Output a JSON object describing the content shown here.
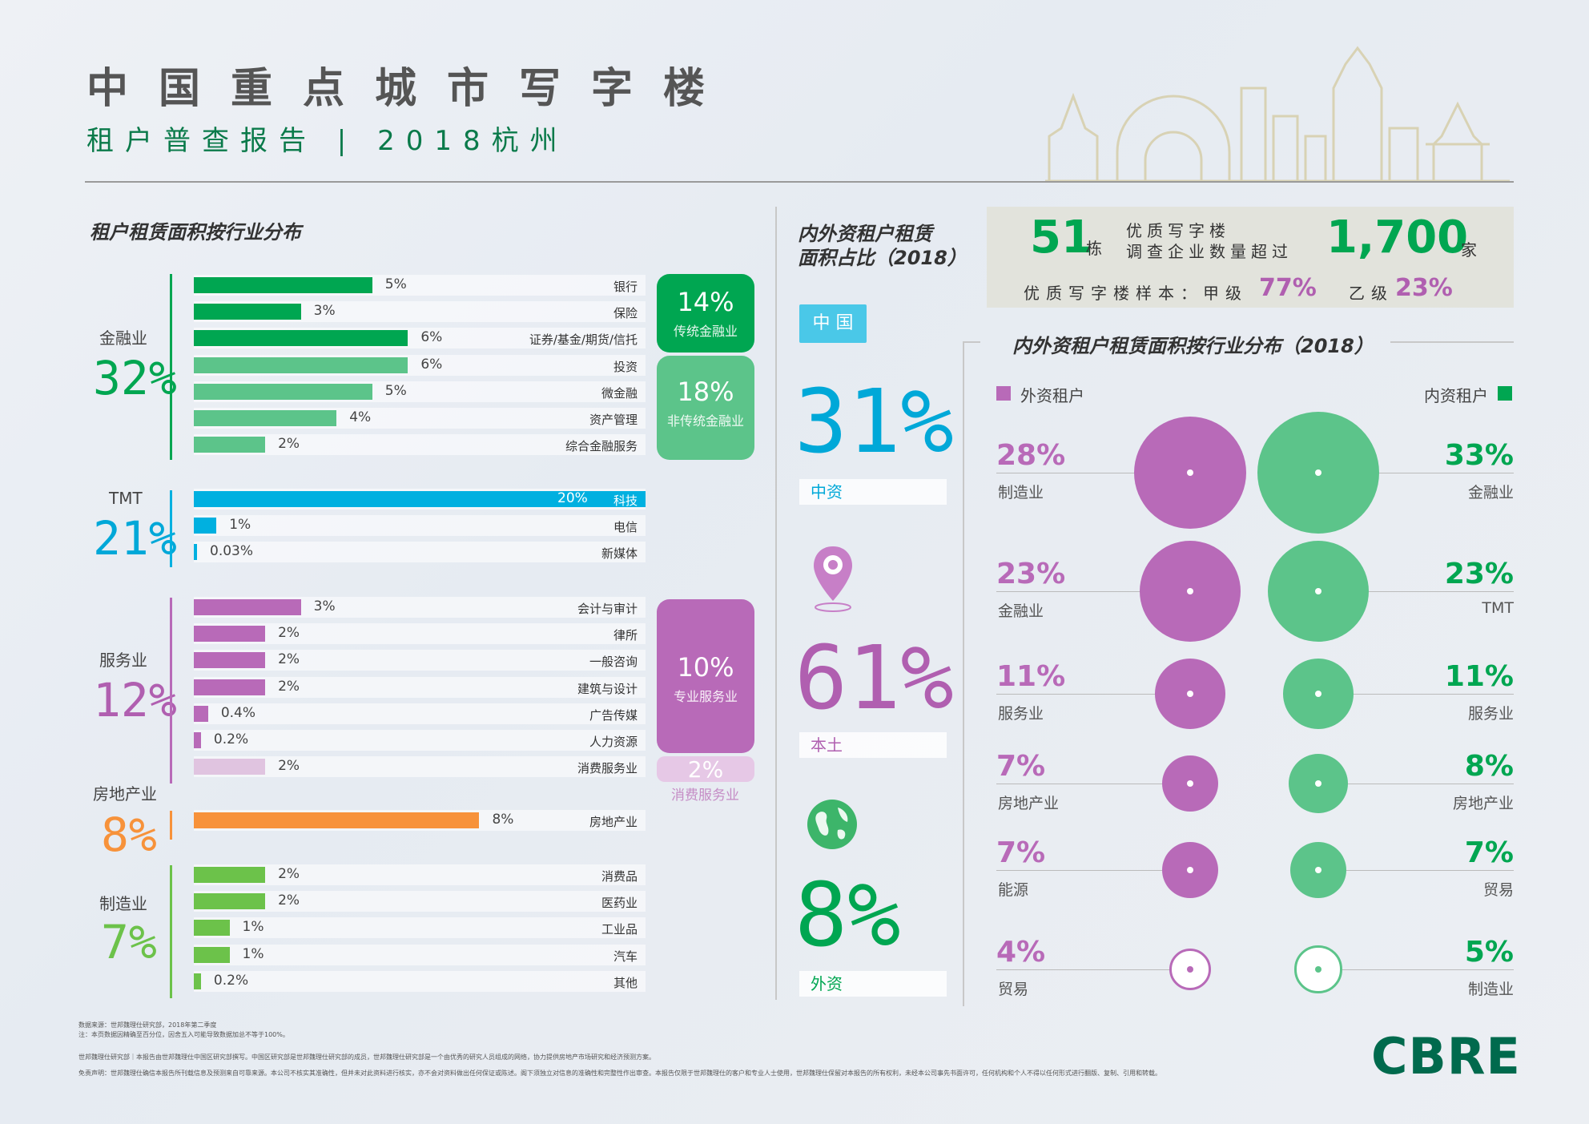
{
  "header": {
    "title": "中国重点城市写字楼",
    "subtitle": "租户普查报告 | 2018杭州"
  },
  "left": {
    "section_title": "租户租赁面积按行业分布",
    "categories": [
      {
        "name": "金融业",
        "pct": "32%"
      },
      {
        "name": "TMT",
        "pct": "21%"
      },
      {
        "name": "服务业",
        "pct": "12%"
      },
      {
        "name": "房地产业",
        "pct": "8%"
      },
      {
        "name": "制造业",
        "pct": "7%"
      }
    ],
    "pills": [
      {
        "pct": "14%",
        "label": "传统金融业"
      },
      {
        "pct": "18%",
        "label": "非传统金融业"
      },
      {
        "pct": "10%",
        "label": "专业服务业"
      },
      {
        "pct": "2%",
        "label": "消费服务业"
      }
    ]
  },
  "middle": {
    "section_title_1": "内外资租户租赁",
    "section_title_2": "面积占比（2018）",
    "china_tag": "中 国",
    "items": [
      {
        "pct": "31%",
        "label": "中资"
      },
      {
        "pct": "61%",
        "label": "本土"
      },
      {
        "pct": "8%",
        "label": "外资"
      }
    ]
  },
  "stats": {
    "buildings_num": "51",
    "buildings_unit": "栋",
    "desc_line1": "优质写字楼",
    "desc_line2": "调查企业数量超过",
    "companies_num": "1,700",
    "companies_unit": "家",
    "sample_label": "优质写字楼样本：甲级",
    "grade_a": "77%",
    "grade_b_label": "乙级",
    "grade_b": "23%"
  },
  "right": {
    "section_title": "内外资租户租赁面积按行业分布（2018）",
    "legend_foreign": "外资租户",
    "legend_domestic": "内资租户"
  },
  "footer": {
    "source": "数据来源：世邦魏理仕研究部，2018年第二季度",
    "note": "注：本页数据因精确至百分位，因舍五入可能导致数据加总不等于100%。",
    "about": "世邦魏理仕研究部｜本报告由世邦魏理仕中国区研究部撰写。中国区研究部是世邦魏理仕研究部的成员，世邦魏理仕研究部是一个由优秀的研究人员组成的网络，协力提供房地产市场研究和经济预测方案。",
    "disclaimer": "免责声明：世邦魏理仕确信本报告所刊载信息及预测来自可靠来源。本公司不核实其准确性，但并未对此资料进行核实，亦不会对资料做出任何保证或陈述。阁下须独立对信息的准确性和完整性作出审查。本报告仅限于世邦魏理仕的客户和专业人士使用，世邦魏理仕保留对本报告的所有权利，未经本公司事先书面许可，任何机构和个人不得以任何形式进行翻版、复制、引用和转载。",
    "logo": "CBRE"
  },
  "chart_data": [
    {
      "type": "bar",
      "title": "租户租赁面积按行业分布",
      "series": [
        {
          "name": "金融业",
          "color": "#00a651",
          "items": [
            {
              "label": "银行",
              "value": 5,
              "text": "5%"
            },
            {
              "label": "保险",
              "value": 3,
              "text": "3%"
            },
            {
              "label": "证券/基金/期货/信托",
              "value": 6,
              "text": "6%"
            },
            {
              "label": "投资",
              "value": 6,
              "text": "6%"
            },
            {
              "label": "微金融",
              "value": 5,
              "text": "5%"
            },
            {
              "label": "资产管理",
              "value": 4,
              "text": "4%"
            },
            {
              "label": "综合金融服务",
              "value": 2,
              "text": "2%"
            }
          ]
        },
        {
          "name": "TMT",
          "color": "#00b0e0",
          "items": [
            {
              "label": "科技",
              "value": 20,
              "text": "20%"
            },
            {
              "label": "电信",
              "value": 1,
              "text": "1%"
            },
            {
              "label": "新媒体",
              "value": 0.03,
              "text": "0.03%"
            }
          ]
        },
        {
          "name": "服务业",
          "color": "#b86ab8",
          "items": [
            {
              "label": "会计与审计",
              "value": 3,
              "text": "3%"
            },
            {
              "label": "律所",
              "value": 2,
              "text": "2%"
            },
            {
              "label": "一般咨询",
              "value": 2,
              "text": "2%"
            },
            {
              "label": "建筑与设计",
              "value": 2,
              "text": "2%"
            },
            {
              "label": "广告传媒",
              "value": 0.4,
              "text": "0.4%"
            },
            {
              "label": "人力资源",
              "value": 0.2,
              "text": "0.2%"
            },
            {
              "label": "消费服务业",
              "value": 2,
              "text": "2%"
            }
          ]
        },
        {
          "name": "房地产业",
          "color": "#f7923a",
          "items": [
            {
              "label": "房地产业",
              "value": 8,
              "text": "8%"
            }
          ]
        },
        {
          "name": "制造业",
          "color": "#6cc24a",
          "items": [
            {
              "label": "消费品",
              "value": 2,
              "text": "2%"
            },
            {
              "label": "医药业",
              "value": 2,
              "text": "2%"
            },
            {
              "label": "工业品",
              "value": 1,
              "text": "1%"
            },
            {
              "label": "汽车",
              "value": 1,
              "text": "1%"
            },
            {
              "label": "其他",
              "value": 0.2,
              "text": "0.2%"
            }
          ]
        }
      ],
      "xlim": [
        0,
        20
      ]
    },
    {
      "type": "scatter",
      "title": "内外资租户租赁面积按行业分布（2018）",
      "series": [
        {
          "name": "外资租户",
          "color": "#b86ab8",
          "items": [
            {
              "label": "制造业",
              "value": 28,
              "text": "28%"
            },
            {
              "label": "金融业",
              "value": 23,
              "text": "23%"
            },
            {
              "label": "服务业",
              "value": 11,
              "text": "11%"
            },
            {
              "label": "房地产业",
              "value": 7,
              "text": "7%"
            },
            {
              "label": "能源",
              "value": 7,
              "text": "7%"
            },
            {
              "label": "贸易",
              "value": 4,
              "text": "4%"
            }
          ]
        },
        {
          "name": "内资租户",
          "color": "#5cc48a",
          "items": [
            {
              "label": "金融业",
              "value": 33,
              "text": "33%"
            },
            {
              "label": "TMT",
              "value": 23,
              "text": "23%"
            },
            {
              "label": "服务业",
              "value": 11,
              "text": "11%"
            },
            {
              "label": "房地产业",
              "value": 8,
              "text": "8%"
            },
            {
              "label": "贸易",
              "value": 7,
              "text": "7%"
            },
            {
              "label": "制造业",
              "value": 5,
              "text": "5%"
            }
          ]
        }
      ]
    }
  ]
}
